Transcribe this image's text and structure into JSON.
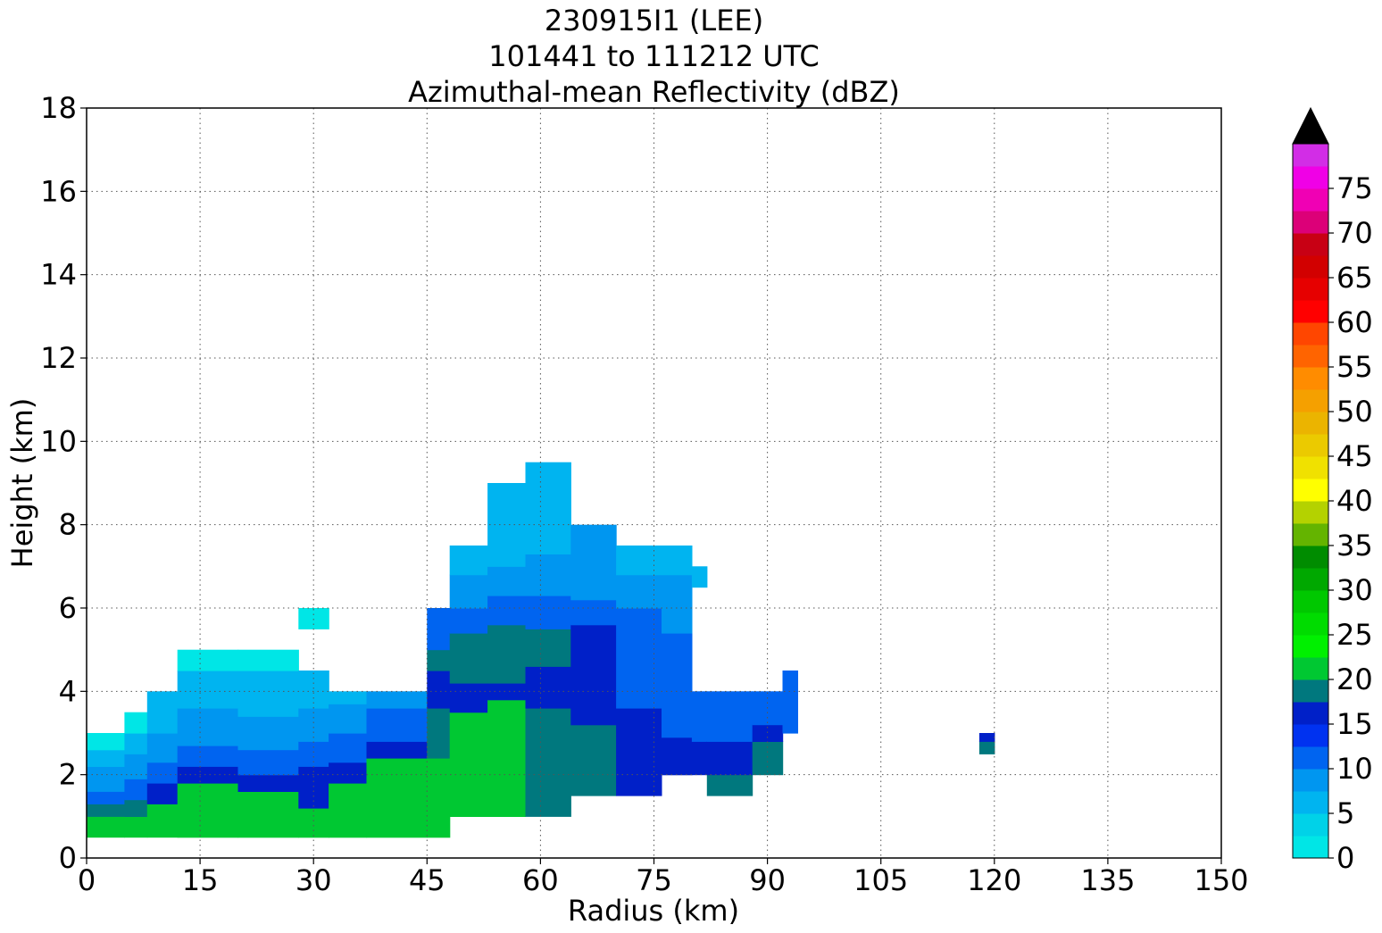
{
  "chart_data": {
    "type": "heatmap",
    "title_lines": [
      "230915I1 (LEE)",
      "101441 to 111212 UTC",
      "Azimuthal-mean Reflectivity (dBZ)"
    ],
    "xlabel": "Radius (km)",
    "ylabel": "Height (km)",
    "xlim": [
      0,
      150
    ],
    "ylim": [
      0,
      18
    ],
    "xticks": [
      0,
      15,
      30,
      45,
      60,
      75,
      90,
      105,
      120,
      135,
      150
    ],
    "yticks": [
      0,
      2,
      4,
      6,
      8,
      10,
      12,
      14,
      16,
      18
    ],
    "grid": true,
    "colorbar": {
      "label": "",
      "vmin": 0,
      "vmax": 80,
      "extend": "max",
      "levels_step": 2.5,
      "ticks": [
        0,
        5,
        10,
        15,
        20,
        25,
        30,
        35,
        40,
        45,
        50,
        55,
        60,
        65,
        70,
        75
      ],
      "colors": [
        "#00e6e6",
        "#00d2e8",
        "#00b4f0",
        "#0096f0",
        "#0064f0",
        "#0032f0",
        "#0020c8",
        "#00787e",
        "#00c832",
        "#00f000",
        "#00dc00",
        "#00c800",
        "#00a800",
        "#008c00",
        "#64b400",
        "#b4d200",
        "#ffff00",
        "#f0e100",
        "#ebca00",
        "#ebb400",
        "#f5a000",
        "#ff8c00",
        "#ff6400",
        "#ff4600",
        "#ff0000",
        "#e60000",
        "#d20000",
        "#c80014",
        "#dc0078",
        "#f000b4",
        "#f000e6",
        "#d22de6",
        "#aa50d2",
        "#8246a5",
        "#442050",
        "#000000"
      ],
      "over_color": "#000000"
    },
    "approximate_field": {
      "columns_km": [
        {
          "x": [
            0,
            5
          ],
          "bands_km": [
            [
              0.5,
              1.0,
              20
            ],
            [
              1.0,
              1.3,
              18
            ],
            [
              1.3,
              1.6,
              12
            ],
            [
              1.6,
              2.2,
              8
            ],
            [
              2.2,
              2.6,
              5
            ],
            [
              2.6,
              3.0,
              2
            ]
          ]
        },
        {
          "x": [
            5,
            8
          ],
          "bands_km": [
            [
              0.5,
              1.0,
              20
            ],
            [
              1.0,
              1.4,
              18
            ],
            [
              1.4,
              1.9,
              12
            ],
            [
              1.9,
              2.5,
              8
            ],
            [
              2.5,
              3.0,
              5
            ],
            [
              3.0,
              3.5,
              2
            ]
          ]
        },
        {
          "x": [
            8,
            12
          ],
          "bands_km": [
            [
              0.5,
              1.3,
              20
            ],
            [
              1.3,
              1.8,
              15
            ],
            [
              1.8,
              2.3,
              12
            ],
            [
              2.3,
              3.0,
              8
            ],
            [
              3.0,
              4.0,
              5
            ]
          ]
        },
        {
          "x": [
            12,
            20
          ],
          "bands_km": [
            [
              0.5,
              0.8,
              22
            ],
            [
              0.8,
              1.8,
              20
            ],
            [
              1.8,
              2.2,
              15
            ],
            [
              2.2,
              2.7,
              12
            ],
            [
              2.7,
              3.6,
              8
            ],
            [
              3.6,
              4.5,
              5
            ],
            [
              4.5,
              5.0,
              2
            ]
          ]
        },
        {
          "x": [
            20,
            28
          ],
          "bands_km": [
            [
              0.5,
              0.8,
              22
            ],
            [
              0.8,
              1.6,
              20
            ],
            [
              1.6,
              2.0,
              15
            ],
            [
              2.0,
              2.6,
              12
            ],
            [
              2.6,
              3.4,
              8
            ],
            [
              3.4,
              4.5,
              5
            ],
            [
              4.5,
              5.0,
              2
            ]
          ]
        },
        {
          "x": [
            28,
            32
          ],
          "bands_km": [
            [
              0.5,
              1.2,
              20
            ],
            [
              1.2,
              2.2,
              15
            ],
            [
              2.2,
              2.8,
              12
            ],
            [
              2.8,
              3.6,
              8
            ],
            [
              3.6,
              4.5,
              5
            ],
            [
              5.5,
              6.0,
              2
            ]
          ]
        },
        {
          "x": [
            32,
            37
          ],
          "bands_km": [
            [
              0.5,
              1.8,
              20
            ],
            [
              1.8,
              2.3,
              15
            ],
            [
              2.3,
              3.0,
              12
            ],
            [
              3.0,
              3.7,
              8
            ],
            [
              3.7,
              4.0,
              5
            ]
          ]
        },
        {
          "x": [
            37,
            45
          ],
          "bands_km": [
            [
              0.5,
              2.4,
              20
            ],
            [
              2.4,
              2.8,
              15
            ],
            [
              2.8,
              3.6,
              12
            ],
            [
              3.6,
              4.0,
              8
            ]
          ]
        },
        {
          "x": [
            45,
            48
          ],
          "bands_km": [
            [
              0.5,
              2.4,
              20
            ],
            [
              2.4,
              3.6,
              18
            ],
            [
              3.6,
              4.5,
              15
            ],
            [
              4.5,
              5.0,
              18
            ],
            [
              5.0,
              5.5,
              12
            ],
            [
              5.5,
              6.0,
              10
            ]
          ]
        },
        {
          "x": [
            48,
            53
          ],
          "bands_km": [
            [
              1.0,
              3.5,
              20
            ],
            [
              3.5,
              4.2,
              15
            ],
            [
              4.2,
              5.4,
              18
            ],
            [
              5.4,
              6.0,
              12
            ],
            [
              6.0,
              6.8,
              8
            ],
            [
              6.8,
              7.5,
              5
            ]
          ]
        },
        {
          "x": [
            53,
            58
          ],
          "bands_km": [
            [
              1.0,
              3.8,
              20
            ],
            [
              3.8,
              4.2,
              15
            ],
            [
              4.2,
              5.6,
              18
            ],
            [
              5.6,
              6.3,
              12
            ],
            [
              6.3,
              7.0,
              8
            ],
            [
              7.0,
              9.0,
              5
            ]
          ]
        },
        {
          "x": [
            58,
            64
          ],
          "bands_km": [
            [
              1.0,
              3.6,
              18
            ],
            [
              3.6,
              4.6,
              15
            ],
            [
              4.6,
              5.5,
              18
            ],
            [
              5.5,
              6.3,
              12
            ],
            [
              6.3,
              7.3,
              8
            ],
            [
              7.3,
              9.5,
              5
            ]
          ]
        },
        {
          "x": [
            64,
            70
          ],
          "bands_km": [
            [
              1.5,
              3.2,
              18
            ],
            [
              3.2,
              5.6,
              15
            ],
            [
              5.6,
              6.2,
              12
            ],
            [
              6.2,
              8.0,
              8
            ]
          ]
        },
        {
          "x": [
            70,
            76
          ],
          "bands_km": [
            [
              1.5,
              3.6,
              15
            ],
            [
              3.6,
              6.0,
              12
            ],
            [
              6.0,
              6.8,
              8
            ],
            [
              6.8,
              7.5,
              5
            ]
          ]
        },
        {
          "x": [
            76,
            80
          ],
          "bands_km": [
            [
              2.0,
              2.9,
              15
            ],
            [
              2.9,
              5.4,
              12
            ],
            [
              5.4,
              6.8,
              8
            ],
            [
              6.8,
              7.5,
              5
            ]
          ]
        },
        {
          "x": [
            80,
            82
          ],
          "bands_km": [
            [
              2.0,
              2.8,
              15
            ],
            [
              2.8,
              4.0,
              12
            ],
            [
              6.5,
              7.0,
              5
            ]
          ]
        },
        {
          "x": [
            82,
            88
          ],
          "bands_km": [
            [
              1.5,
              2.0,
              18
            ],
            [
              2.0,
              2.8,
              15
            ],
            [
              2.8,
              4.0,
              12
            ]
          ]
        },
        {
          "x": [
            88,
            92
          ],
          "bands_km": [
            [
              2.0,
              2.8,
              18
            ],
            [
              2.8,
              3.2,
              15
            ],
            [
              3.2,
              4.0,
              12
            ]
          ]
        },
        {
          "x": [
            92,
            94
          ],
          "bands_km": [
            [
              3.0,
              4.0,
              12
            ],
            [
              4.0,
              4.5,
              10
            ]
          ]
        },
        {
          "x": [
            118,
            120
          ],
          "bands_km": [
            [
              2.5,
              2.8,
              18
            ],
            [
              2.8,
              3.0,
              15
            ]
          ]
        }
      ],
      "note_cells_km": [
        {
          "x": [
            60,
            62
          ],
          "y": [
            1.0,
            1.5
          ],
          "dbz": 18
        },
        {
          "x": [
            48,
            58
          ],
          "y": [
            1.0,
            1.5
          ],
          "dbz": 20
        }
      ]
    }
  }
}
